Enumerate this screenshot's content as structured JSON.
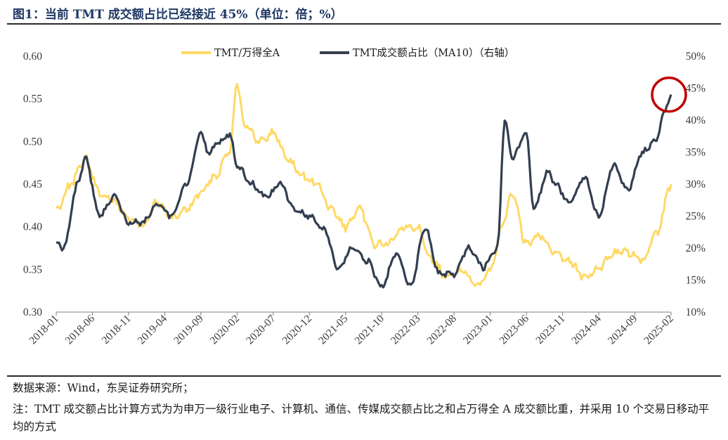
{
  "title": "图1：当前 TMT 成交额占比已经接近 45%（单位：倍；%）",
  "source": "数据来源：Wind，东吴证券研究所；",
  "note": "注：TMT 成交额占比计算方式为为申万一级行业电子、计算机、通信、传媒成交额占比之和占万得全 A 成交额比重，并采用 10 个交易日移动平均的方式",
  "colors": {
    "ratio": "#FFD966",
    "share": "#333F50",
    "highlight": "#C00000"
  },
  "chart_data": {
    "type": "line",
    "x_ticks": [
      "2018-01",
      "2018-06",
      "2018-11",
      "2019-04",
      "2019-09",
      "2020-02",
      "2020-07",
      "2020-12",
      "2021-05",
      "2021-10",
      "2022-03",
      "2022-08",
      "2023-01",
      "2023-06",
      "2023-11",
      "2024-04",
      "2024-09",
      "2025-02"
    ],
    "y_left": {
      "ticks": [
        "0.30",
        "0.35",
        "0.40",
        "0.45",
        "0.50",
        "0.55",
        "0.60"
      ],
      "min": 0.3,
      "max": 0.6
    },
    "y_right": {
      "ticks": [
        "10%",
        "15%",
        "20%",
        "25%",
        "30%",
        "35%",
        "40%",
        "45%",
        "50%"
      ],
      "min": 10,
      "max": 50
    },
    "legend_position": "top",
    "annotation": "red circle at latest value (~44%)",
    "series": [
      {
        "name": "TMT/万得全A",
        "axis": "left",
        "x": [
          "2018-01",
          "2018-03",
          "2018-05",
          "2018-07",
          "2018-09",
          "2018-11",
          "2019-01",
          "2019-03",
          "2019-05",
          "2019-07",
          "2019-09",
          "2019-11",
          "2020-01",
          "2020-02",
          "2020-03",
          "2020-05",
          "2020-07",
          "2020-09",
          "2020-11",
          "2021-01",
          "2021-03",
          "2021-05",
          "2021-07",
          "2021-09",
          "2021-11",
          "2022-01",
          "2022-03",
          "2022-05",
          "2022-07",
          "2022-09",
          "2022-11",
          "2023-01",
          "2023-03",
          "2023-04",
          "2023-06",
          "2023-08",
          "2023-10",
          "2023-12",
          "2024-02",
          "2024-04",
          "2024-06",
          "2024-08",
          "2024-10",
          "2024-12",
          "2025-02"
        ],
        "values": [
          0.42,
          0.45,
          0.48,
          0.44,
          0.43,
          0.41,
          0.4,
          0.43,
          0.41,
          0.42,
          0.44,
          0.46,
          0.49,
          0.57,
          0.52,
          0.5,
          0.51,
          0.48,
          0.46,
          0.45,
          0.42,
          0.4,
          0.42,
          0.38,
          0.38,
          0.4,
          0.4,
          0.36,
          0.34,
          0.35,
          0.33,
          0.35,
          0.41,
          0.44,
          0.38,
          0.39,
          0.37,
          0.36,
          0.34,
          0.35,
          0.37,
          0.37,
          0.36,
          0.39,
          0.45
        ]
      },
      {
        "name": "TMT成交额占比（MA10）（右轴）",
        "axis": "right",
        "x": [
          "2018-01",
          "2018-02",
          "2018-04",
          "2018-05",
          "2018-07",
          "2018-09",
          "2018-11",
          "2019-01",
          "2019-03",
          "2019-05",
          "2019-07",
          "2019-09",
          "2019-10",
          "2019-12",
          "2020-01",
          "2020-02",
          "2020-04",
          "2020-06",
          "2020-08",
          "2020-10",
          "2020-12",
          "2021-02",
          "2021-04",
          "2021-06",
          "2021-08",
          "2021-10",
          "2021-12",
          "2022-02",
          "2022-04",
          "2022-06",
          "2022-08",
          "2022-10",
          "2022-12",
          "2023-02",
          "2023-03",
          "2023-04",
          "2023-06",
          "2023-07",
          "2023-09",
          "2023-10",
          "2023-12",
          "2024-02",
          "2024-04",
          "2024-06",
          "2024-08",
          "2024-10",
          "2024-12",
          "2025-01",
          "2025-02"
        ],
        "values": [
          21,
          20,
          30,
          34,
          25,
          28,
          24,
          24,
          27,
          25,
          30,
          38,
          35,
          37,
          38,
          33,
          30,
          28,
          30,
          26,
          25,
          23,
          17,
          20,
          18,
          14,
          19,
          14,
          23,
          16,
          16,
          20,
          17,
          20,
          40,
          34,
          38,
          26,
          32,
          30,
          27,
          31,
          25,
          33,
          29,
          35,
          37,
          41,
          44
        ]
      }
    ]
  }
}
